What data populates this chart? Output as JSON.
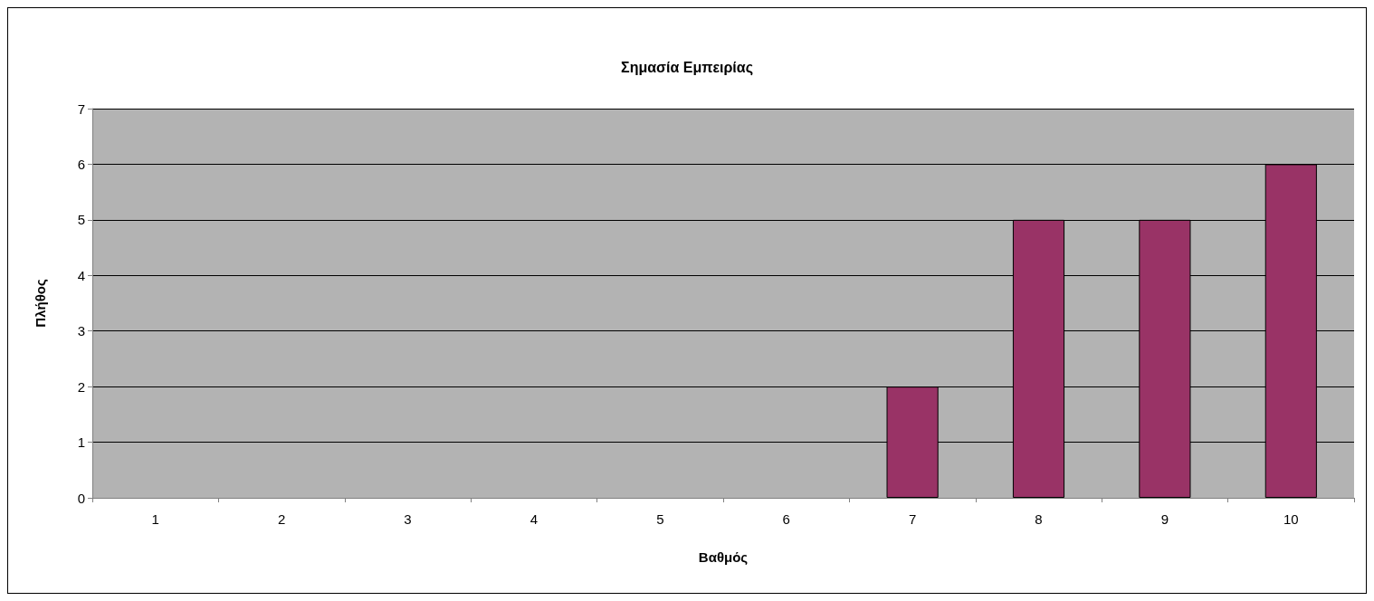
{
  "chart_data": {
    "type": "bar",
    "title": "Σημασία Εμπειρίας",
    "xlabel": "Βαθμός",
    "ylabel": "Πλήθος",
    "categories": [
      "1",
      "2",
      "3",
      "4",
      "5",
      "6",
      "7",
      "8",
      "9",
      "10"
    ],
    "values": [
      0,
      0,
      0,
      0,
      0,
      0,
      2,
      5,
      5,
      6
    ],
    "color": "#993366",
    "ylim": [
      0,
      7
    ],
    "yticks": [
      0,
      1,
      2,
      3,
      4,
      5,
      6,
      7
    ],
    "grid": "y"
  }
}
